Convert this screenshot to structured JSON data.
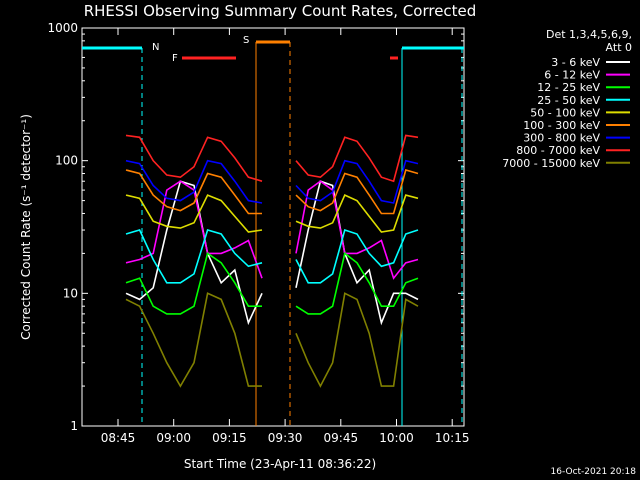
{
  "chart_data": {
    "type": "line",
    "title": "RHESSI Observing Summary Count Rates, Corrected",
    "ylabel": "Corrected Count Rate (s⁻¹ detector⁻¹)",
    "xlabel": "Start Time (23-Apr-11 08:36:22)",
    "yscale": "log",
    "ylim": [
      1,
      1000
    ],
    "xlim": [
      "08:36:22",
      "10:16:00"
    ],
    "x_ticks": [
      "08:45",
      "09:00",
      "09:15",
      "09:30",
      "09:45",
      "10:00",
      "10:15"
    ],
    "y_ticks": [
      "1",
      "10",
      "100",
      "1000"
    ],
    "footer_date": "16-Oct-2021 20:18",
    "legend_header": [
      "Det 1,3,4,5,6,9,",
      "Att 0"
    ],
    "grid": false,
    "legend_position": "right",
    "series": [
      {
        "name": "3 - 6 keV",
        "color": "#ffffff",
        "x": [
          1,
          2,
          3,
          4,
          5,
          6,
          7,
          8,
          9,
          10,
          11
        ],
        "y": [
          10,
          9,
          11,
          30,
          70,
          65,
          20,
          12,
          15,
          6,
          10
        ]
      },
      {
        "name": "6 - 12 keV",
        "color": "#ff00ff",
        "x": [
          1,
          2,
          3,
          4,
          5,
          6,
          7,
          8,
          9,
          10,
          11
        ],
        "y": [
          17,
          18,
          20,
          60,
          70,
          60,
          20,
          20,
          22,
          25,
          13
        ]
      },
      {
        "name": "12 - 25 keV",
        "color": "#00ff00",
        "x": [
          1,
          2,
          3,
          4,
          5,
          6,
          7,
          8,
          9,
          10,
          11
        ],
        "y": [
          12,
          13,
          8,
          7,
          7,
          8,
          20,
          17,
          12,
          8,
          8
        ]
      },
      {
        "name": "25 - 50 keV",
        "color": "#00ffff",
        "x": [
          1,
          2,
          3,
          4,
          5,
          6,
          7,
          8,
          9,
          10,
          11
        ],
        "y": [
          28,
          30,
          18,
          12,
          12,
          14,
          30,
          28,
          20,
          16,
          17
        ]
      },
      {
        "name": "50 - 100 keV",
        "color": "#dddd00",
        "x": [
          1,
          2,
          3,
          4,
          5,
          6,
          7,
          8,
          9,
          10,
          11
        ],
        "y": [
          55,
          52,
          35,
          32,
          31,
          34,
          55,
          50,
          38,
          29,
          30
        ]
      },
      {
        "name": "100 - 300 keV",
        "color": "#ff8000",
        "x": [
          1,
          2,
          3,
          4,
          5,
          6,
          7,
          8,
          9,
          10,
          11
        ],
        "y": [
          85,
          80,
          55,
          45,
          42,
          48,
          80,
          75,
          55,
          40,
          40
        ]
      },
      {
        "name": "300 - 800 keV",
        "color": "#0000ff",
        "x": [
          1,
          2,
          3,
          4,
          5,
          6,
          7,
          8,
          9,
          10,
          11
        ],
        "y": [
          100,
          95,
          65,
          52,
          50,
          58,
          100,
          95,
          70,
          50,
          48
        ]
      },
      {
        "name": "800 - 7000 keV",
        "color": "#ff2222",
        "x": [
          1,
          2,
          3,
          4,
          5,
          6,
          7,
          8,
          9,
          10,
          11
        ],
        "y": [
          155,
          150,
          100,
          78,
          75,
          90,
          150,
          140,
          105,
          75,
          70
        ]
      },
      {
        "name": "7000 - 15000 keV",
        "color": "#808000",
        "x": [
          1,
          2,
          3,
          4,
          5,
          6,
          7,
          8,
          9,
          10,
          11
        ],
        "y": [
          9,
          8,
          5,
          3,
          2,
          3,
          10,
          9,
          5,
          2,
          2
        ]
      }
    ],
    "markers": [
      {
        "label": "N",
        "color": "#00ffff"
      },
      {
        "label": "F",
        "color": "#ff2222"
      },
      {
        "label": "S",
        "color": "#ff8000"
      }
    ]
  }
}
